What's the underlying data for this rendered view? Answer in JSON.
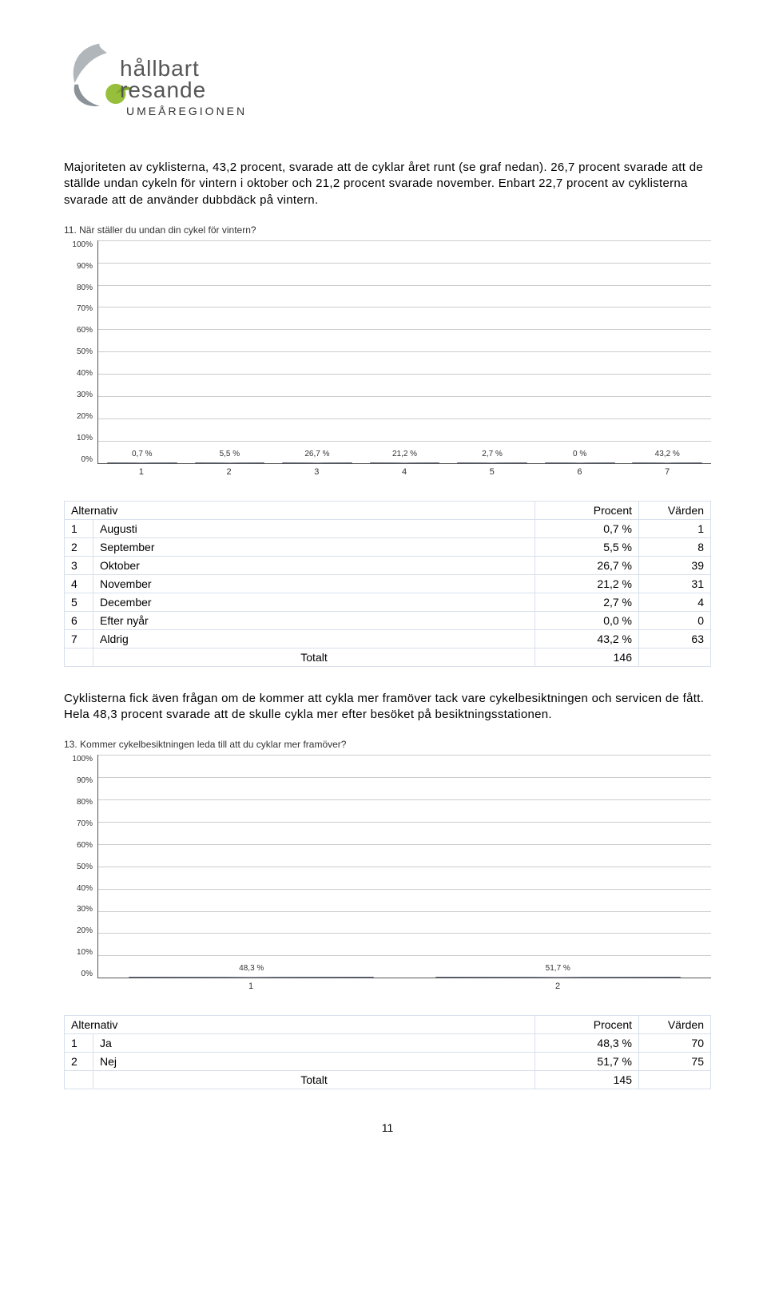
{
  "logo": {
    "line1": "hållbart",
    "line2": "resande",
    "region": "UMEÅREGIONEN"
  },
  "para1": "Majoriteten av cyklisterna, 43,2 procent, svarade att de cyklar året runt (se graf nedan). 26,7 procent svarade att de ställde undan cykeln för vintern i oktober och 21,2 procent svarade november. Enbart 22,7 procent av cyklisterna svarade att de använder dubbdäck på vintern.",
  "para2": "Cyklisterna fick även frågan om de kommer att cykla mer framöver tack vare cykelbesiktningen och servicen de fått. Hela 48,3 procent svarade att de skulle cykla mer efter besöket på besiktningsstationen.",
  "chart1": {
    "title": "11. När ställer du undan din cykel för vintern?",
    "ylabels": [
      "100%",
      "90%",
      "80%",
      "70%",
      "60%",
      "50%",
      "40%",
      "30%",
      "20%",
      "10%",
      "0%"
    ],
    "bars": [
      {
        "x": "1",
        "pct": 0.7,
        "label": "0,7 %"
      },
      {
        "x": "2",
        "pct": 5.5,
        "label": "5,5 %"
      },
      {
        "x": "3",
        "pct": 26.7,
        "label": "26,7 %"
      },
      {
        "x": "4",
        "pct": 21.2,
        "label": "21,2 %"
      },
      {
        "x": "5",
        "pct": 2.7,
        "label": "2,7 %"
      },
      {
        "x": "6",
        "pct": 0.0,
        "label": "0 %"
      },
      {
        "x": "7",
        "pct": 43.2,
        "label": "43,2 %"
      }
    ],
    "bar_color": "#6b7687",
    "grid_color": "#cccccc",
    "axis_color": "#555555",
    "label_fontsize": 10,
    "ylim": [
      0,
      100
    ]
  },
  "table1": {
    "headers": [
      "Alternativ",
      "Procent",
      "Värden"
    ],
    "rows": [
      {
        "idx": "1",
        "name": "Augusti",
        "pct": "0,7 %",
        "val": "1"
      },
      {
        "idx": "2",
        "name": "September",
        "pct": "5,5 %",
        "val": "8"
      },
      {
        "idx": "3",
        "name": "Oktober",
        "pct": "26,7 %",
        "val": "39"
      },
      {
        "idx": "4",
        "name": "November",
        "pct": "21,2 %",
        "val": "31"
      },
      {
        "idx": "5",
        "name": "December",
        "pct": "2,7 %",
        "val": "4"
      },
      {
        "idx": "6",
        "name": "Efter nyår",
        "pct": "0,0 %",
        "val": "0"
      },
      {
        "idx": "7",
        "name": "Aldrig",
        "pct": "43,2 %",
        "val": "63"
      }
    ],
    "total_label": "Totalt",
    "total_value": "146"
  },
  "chart2": {
    "title": "13. Kommer cykelbesiktningen leda till att du cyklar mer framöver?",
    "ylabels": [
      "100%",
      "90%",
      "80%",
      "70%",
      "60%",
      "50%",
      "40%",
      "30%",
      "20%",
      "10%",
      "0%"
    ],
    "bars": [
      {
        "x": "1",
        "pct": 48.3,
        "label": "48,3 %"
      },
      {
        "x": "2",
        "pct": 51.7,
        "label": "51,7 %"
      }
    ],
    "bar_color": "#6b7687",
    "grid_color": "#cccccc",
    "axis_color": "#555555",
    "label_fontsize": 10,
    "ylim": [
      0,
      100
    ]
  },
  "table2": {
    "headers": [
      "Alternativ",
      "Procent",
      "Värden"
    ],
    "rows": [
      {
        "idx": "1",
        "name": "Ja",
        "pct": "48,3 %",
        "val": "70"
      },
      {
        "idx": "2",
        "name": "Nej",
        "pct": "51,7 %",
        "val": "75"
      }
    ],
    "total_label": "Totalt",
    "total_value": "145"
  },
  "page_number": "11"
}
